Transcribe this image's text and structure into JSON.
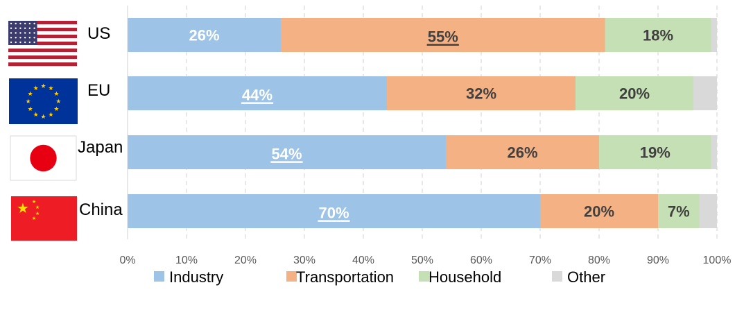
{
  "chart_data": {
    "type": "bar",
    "orientation": "horizontal",
    "stacked": "percent",
    "title": "",
    "xlabel": "",
    "ylabel": "",
    "xlim": [
      0,
      100
    ],
    "x_ticks": [
      "0%",
      "10%",
      "20%",
      "30%",
      "40%",
      "50%",
      "60%",
      "70%",
      "80%",
      "90%",
      "100%"
    ],
    "grid": "vertical dashed",
    "legend_position": "bottom",
    "categories": [
      "US",
      "EU",
      "Japan",
      "China"
    ],
    "flags": [
      "us-flag",
      "eu-flag",
      "japan-flag",
      "china-flag"
    ],
    "series": [
      {
        "name": "Industry",
        "color": "#9dc3e6",
        "values": [
          26,
          44,
          54,
          70
        ],
        "labels": [
          "26%",
          "44%",
          "54%",
          "70%"
        ],
        "label_color": "#ffffff",
        "emphasized": [
          false,
          true,
          true,
          true
        ]
      },
      {
        "name": "Transportation",
        "color": "#f4b183",
        "values": [
          55,
          32,
          26,
          20
        ],
        "labels": [
          "55%",
          "32%",
          "26%",
          "20%"
        ],
        "label_color": "#404040",
        "emphasized": [
          true,
          false,
          false,
          false
        ]
      },
      {
        "name": "Household",
        "color": "#c5e0b4",
        "values": [
          18,
          20,
          19,
          7
        ],
        "labels": [
          "18%",
          "20%",
          "19%",
          "7%"
        ],
        "label_color": "#404040",
        "emphasized": [
          false,
          false,
          false,
          false
        ]
      },
      {
        "name": "Other",
        "color": "#d9d9d9",
        "values": [
          1,
          4,
          1,
          3
        ],
        "labels": [
          "",
          "",
          "",
          ""
        ],
        "label_color": "#404040",
        "emphasized": [
          false,
          false,
          false,
          false
        ]
      }
    ]
  }
}
